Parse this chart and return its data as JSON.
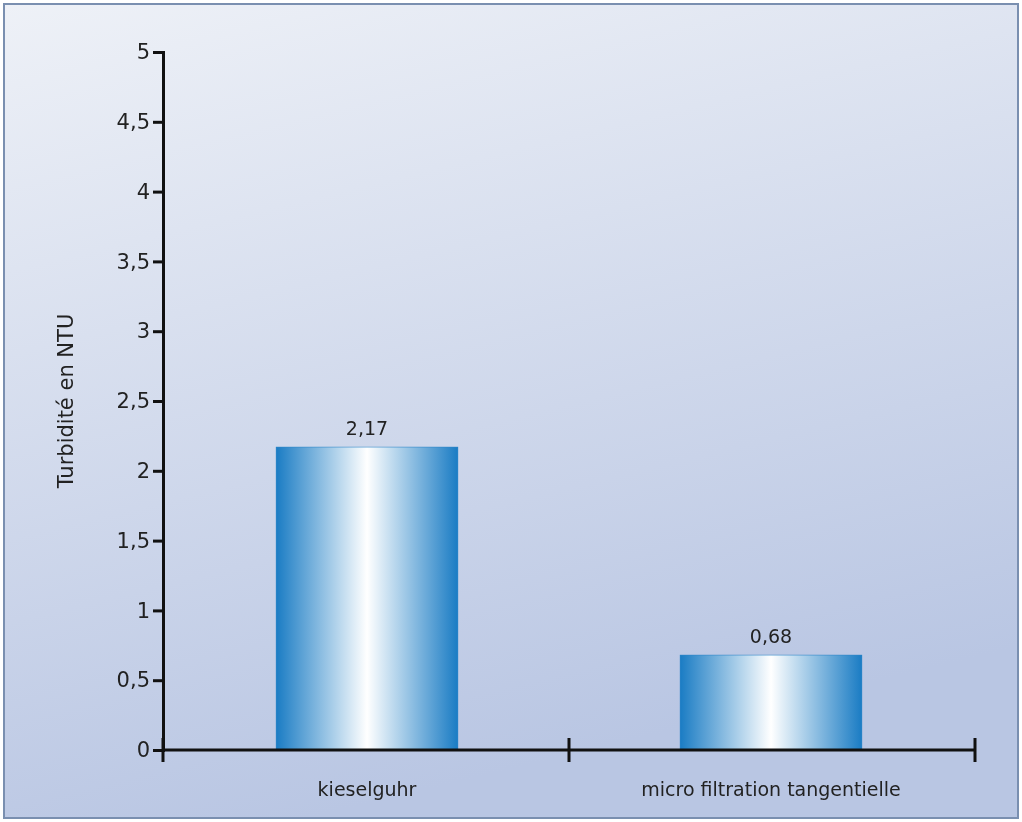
{
  "chart_data": {
    "type": "bar",
    "ylabel": "Turbidité en NTU",
    "categories": [
      "kieselguhr",
      "micro filtration tangentielle"
    ],
    "values": [
      2.17,
      0.68
    ],
    "value_labels": [
      "2,17",
      "0,68"
    ],
    "color": "#1a7cc4",
    "ylim": [
      0,
      5
    ],
    "yticks": [
      0,
      {
        "value": 0.5,
        "label": "0,5"
      },
      1,
      {
        "value": 1.5,
        "label": "1,5"
      },
      2,
      {
        "value": 2.5,
        "label": "2,5"
      },
      3,
      {
        "value": 3.5,
        "label": "3,5"
      },
      4,
      {
        "value": 4.5,
        "label": "4,5"
      },
      5
    ],
    "grid": false
  }
}
